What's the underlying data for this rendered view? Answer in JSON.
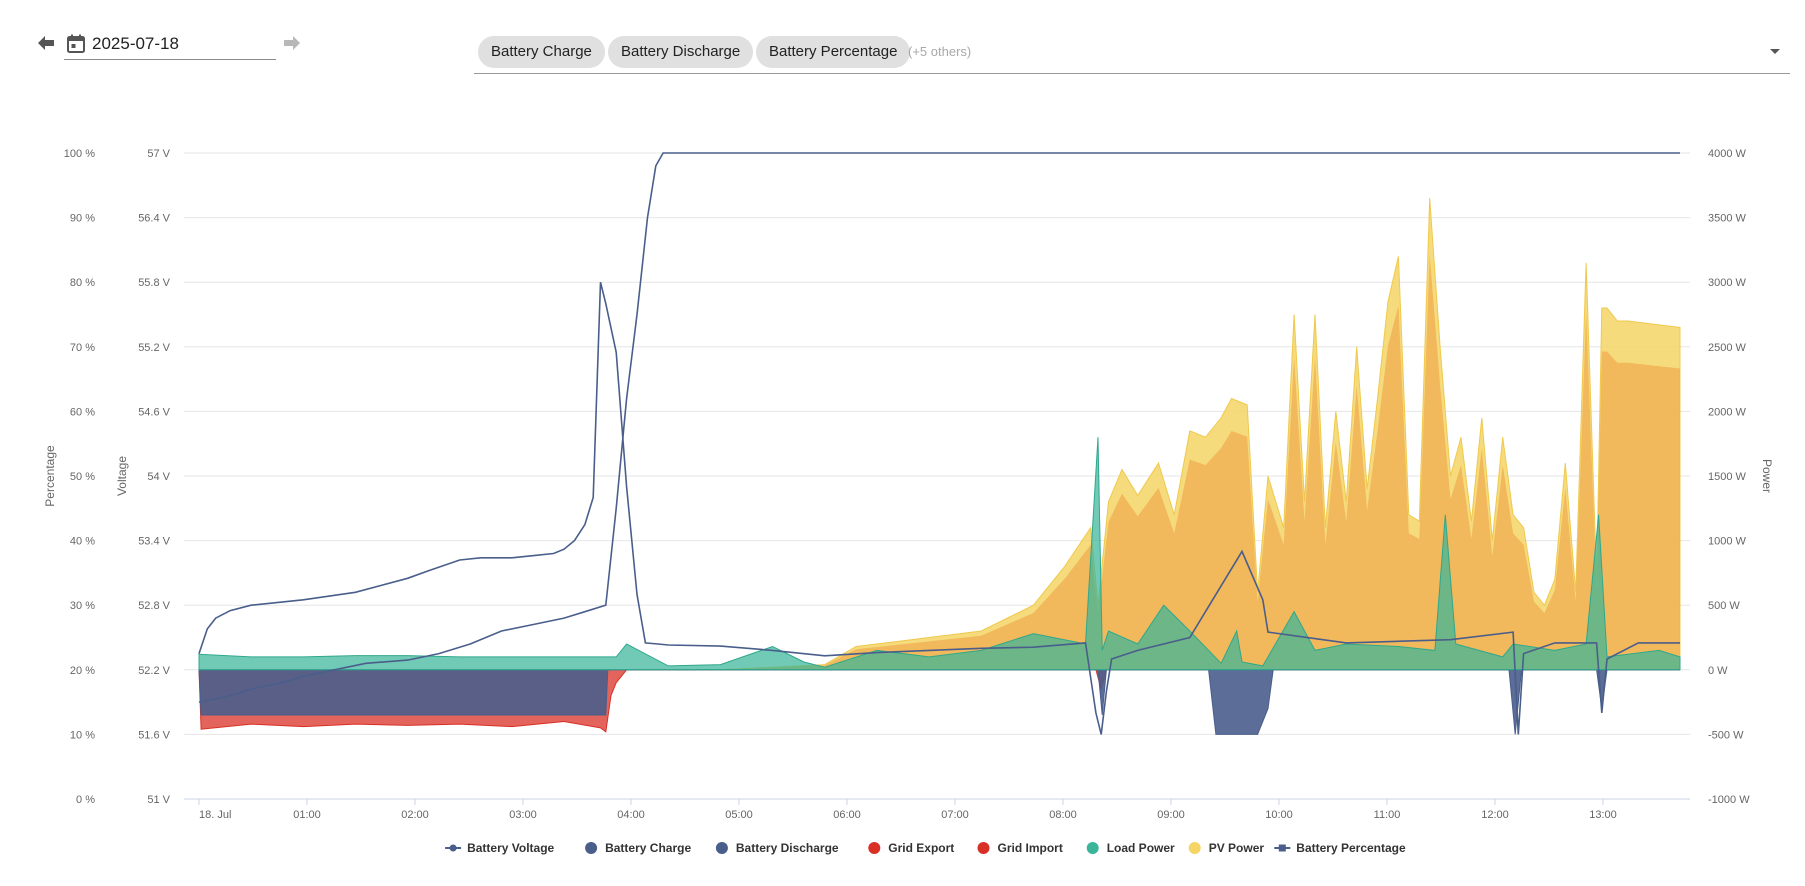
{
  "toolbar": {
    "prev_icon": "arrow-left-icon",
    "next_icon": "arrow-right-icon",
    "calendar_icon": "calendar-icon",
    "date_value": "2025-07-18",
    "chips": [
      "Battery Charge",
      "Battery Discharge",
      "Battery Percentage"
    ],
    "more_label": "(+5 others)",
    "dropdown_icon": "chevron-down-icon"
  },
  "chart_data": {
    "type": "area",
    "title": "",
    "x_ticks": [
      "18. Jul",
      "01:00",
      "02:00",
      "03:00",
      "04:00",
      "05:00",
      "06:00",
      "07:00",
      "08:00",
      "09:00",
      "10:00",
      "11:00",
      "12:00",
      "13:00"
    ],
    "x_range_hours": [
      0,
      14.2
    ],
    "axes": {
      "percentage": {
        "label": "Percentage",
        "ticks": [
          "0 %",
          "10 %",
          "20 %",
          "30 %",
          "40 %",
          "50 %",
          "60 %",
          "70 %",
          "80 %",
          "90 %",
          "100 %"
        ],
        "range": [
          0,
          100
        ]
      },
      "voltage": {
        "label": "Voltage",
        "ticks": [
          "51 V",
          "51.6 V",
          "52.2 V",
          "52.8 V",
          "53.4 V",
          "54 V",
          "54.6 V",
          "55.2 V",
          "55.8 V",
          "56.4 V",
          "57 V"
        ],
        "range": [
          51,
          57
        ]
      },
      "power": {
        "label": "Power",
        "ticks": [
          "-1000 W",
          "-500 W",
          "0 W",
          "500 W",
          "1000 W",
          "1500 W",
          "2000 W",
          "2500 W",
          "3000 W",
          "3500 W",
          "4000 W"
        ],
        "range": [
          -1000,
          4000
        ]
      }
    },
    "grid": true,
    "legend_position": "bottom-center",
    "series": [
      {
        "name": "Battery Voltage",
        "axis": "voltage",
        "kind": "line",
        "color": "#4a5e8c",
        "marker": "circle",
        "x": [
          0,
          0.08,
          0.16,
          0.3,
          0.5,
          1.0,
          1.5,
          2.0,
          2.2,
          2.5,
          2.7,
          3.0,
          3.2,
          3.4,
          3.5,
          3.6,
          3.7,
          3.78,
          3.85,
          3.9,
          4.0,
          4.1,
          4.2,
          4.28,
          4.4,
          4.5,
          5.0,
          5.5,
          6.0,
          6.5,
          7.0,
          7.5,
          8.0,
          8.5,
          8.6,
          8.65,
          8.7,
          8.75,
          9.0,
          9.5,
          10.0,
          10.2,
          10.25,
          11.0,
          12.0,
          12.6,
          12.65,
          12.7,
          13.0,
          13.4,
          13.45,
          13.5,
          13.8,
          14.2
        ],
        "y": [
          52.35,
          52.58,
          52.68,
          52.75,
          52.8,
          52.85,
          52.92,
          53.05,
          53.12,
          53.22,
          53.24,
          53.24,
          53.26,
          53.28,
          53.32,
          53.4,
          53.55,
          53.8,
          55.8,
          55.6,
          55.15,
          53.9,
          52.9,
          52.45,
          52.44,
          52.43,
          52.42,
          52.38,
          52.33,
          52.36,
          52.38,
          52.4,
          52.41,
          52.45,
          51.8,
          51.6,
          52.0,
          52.3,
          52.38,
          52.5,
          53.3,
          52.85,
          52.55,
          52.45,
          52.48,
          52.55,
          51.6,
          52.35,
          52.45,
          52.45,
          51.8,
          52.3,
          52.45,
          52.45
        ]
      },
      {
        "name": "Battery Charge",
        "axis": "power",
        "kind": "area",
        "color": "#4a5e8c",
        "x": [
          0,
          4.0,
          4.2,
          9.7,
          9.75,
          10.2,
          10.25,
          12.6,
          12.65,
          12.7,
          14.2
        ],
        "y": [
          0,
          0,
          0,
          0,
          0,
          0,
          0,
          0,
          0,
          0,
          0
        ]
      },
      {
        "name": "Battery Discharge",
        "axis": "power",
        "kind": "area",
        "color": "#4a5e8c",
        "x": [
          0,
          0.02,
          3.9,
          3.92,
          4.0,
          8.62,
          8.66,
          8.7,
          9.68,
          9.75,
          9.8,
          10.15,
          10.25,
          10.3,
          12.56,
          12.62,
          12.68,
          13.4,
          13.45,
          13.5,
          14.2
        ],
        "y": [
          0,
          -350,
          -350,
          0,
          0,
          0,
          -350,
          0,
          0,
          -500,
          -500,
          -500,
          -300,
          0,
          0,
          -500,
          0,
          0,
          -300,
          0,
          0
        ]
      },
      {
        "name": "Grid Export",
        "axis": "power",
        "kind": "area",
        "color": "#d93025",
        "x": [
          0,
          8.6,
          8.65,
          8.7,
          14.2
        ],
        "y": [
          0,
          0,
          -150,
          0,
          0
        ]
      },
      {
        "name": "Grid Import",
        "axis": "power",
        "kind": "area",
        "color": "#d93025",
        "x": [
          0,
          0.02,
          0.5,
          1.0,
          1.5,
          2.0,
          2.5,
          3.0,
          3.5,
          3.85,
          3.9,
          3.95,
          4.0,
          4.1,
          4.2,
          14.2
        ],
        "y": [
          0,
          -460,
          -420,
          -440,
          -420,
          -430,
          -420,
          -440,
          -400,
          -450,
          -480,
          -200,
          -100,
          0,
          0,
          0
        ]
      },
      {
        "name": "Load Power",
        "axis": "power",
        "kind": "area",
        "color": "#3ab59a",
        "x": [
          0,
          0.5,
          1.0,
          1.5,
          2.0,
          2.5,
          3.0,
          3.5,
          4.0,
          4.1,
          4.5,
          5.0,
          5.5,
          5.8,
          6.0,
          6.5,
          7.0,
          7.5,
          8.0,
          8.5,
          8.62,
          8.66,
          8.72,
          9.0,
          9.25,
          9.5,
          9.8,
          9.95,
          10.0,
          10.2,
          10.5,
          10.7,
          11.0,
          11.5,
          11.85,
          11.95,
          12.05,
          12.5,
          12.6,
          13.0,
          13.3,
          13.42,
          13.5,
          14.0,
          14.2
        ],
        "y": [
          120,
          100,
          100,
          110,
          110,
          100,
          100,
          100,
          100,
          200,
          30,
          40,
          180,
          60,
          20,
          150,
          100,
          150,
          280,
          200,
          1800,
          150,
          300,
          200,
          500,
          300,
          50,
          300,
          60,
          30,
          450,
          150,
          200,
          180,
          150,
          1200,
          200,
          100,
          200,
          150,
          200,
          1200,
          100,
          150,
          100
        ]
      },
      {
        "name": "PV Power",
        "axis": "power",
        "kind": "area",
        "color": "#f5d565",
        "x": [
          0,
          4.0,
          5.0,
          6.0,
          6.3,
          7.0,
          7.5,
          8.0,
          8.3,
          8.55,
          8.62,
          8.72,
          8.85,
          9.0,
          9.2,
          9.35,
          9.5,
          9.65,
          9.8,
          9.9,
          10.05,
          10.15,
          10.25,
          10.4,
          10.5,
          10.6,
          10.7,
          10.8,
          10.9,
          11.0,
          11.1,
          11.2,
          11.3,
          11.4,
          11.5,
          11.6,
          11.7,
          11.8,
          11.9,
          12.0,
          12.1,
          12.2,
          12.3,
          12.4,
          12.5,
          12.6,
          12.7,
          12.8,
          12.9,
          13.0,
          13.1,
          13.2,
          13.3,
          13.4,
          13.45,
          13.5,
          13.6,
          13.7,
          14.2
        ],
        "y": [
          0,
          0,
          0,
          40,
          180,
          250,
          300,
          500,
          800,
          1100,
          500,
          1300,
          1550,
          1350,
          1600,
          1200,
          1850,
          1800,
          1950,
          2100,
          2050,
          600,
          1500,
          1100,
          2750,
          1300,
          2750,
          1100,
          2000,
          1300,
          2500,
          1400,
          2100,
          2850,
          3200,
          1200,
          1150,
          3650,
          2500,
          1500,
          1800,
          1150,
          1950,
          1000,
          1800,
          1200,
          1100,
          600,
          500,
          700,
          1600,
          600,
          3150,
          700,
          2800,
          2800,
          2700,
          2700,
          2650
        ]
      },
      {
        "name": "Battery Percentage",
        "axis": "percentage",
        "kind": "line",
        "color": "#4a5e8c",
        "marker": "square",
        "x": [
          0,
          0.3,
          0.5,
          0.8,
          1.0,
          1.3,
          1.6,
          2.0,
          2.3,
          2.6,
          2.9,
          3.2,
          3.5,
          3.7,
          3.9,
          4.0,
          4.1,
          4.2,
          4.3,
          4.38,
          4.45,
          4.5,
          14.2
        ],
        "y": [
          15,
          16,
          17,
          18,
          19,
          20,
          21,
          21.5,
          22.5,
          24,
          26,
          27,
          28,
          29,
          30,
          45,
          62,
          75,
          90,
          98,
          100,
          100,
          100
        ]
      }
    ]
  }
}
